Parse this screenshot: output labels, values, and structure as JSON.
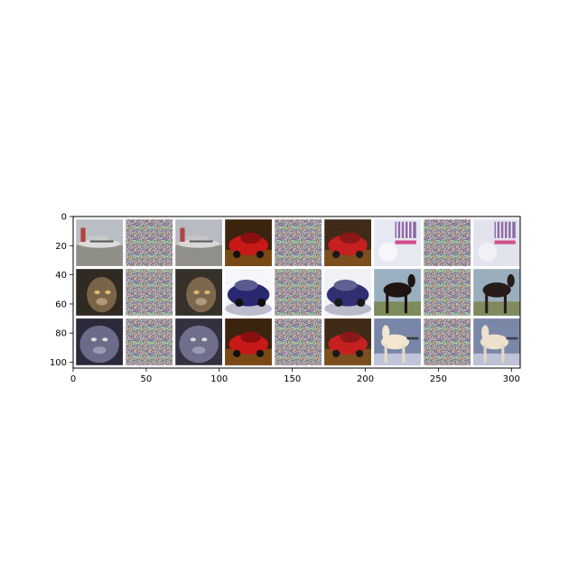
{
  "chart_data": {
    "type": "heatmap",
    "title": "",
    "xlabel": "",
    "ylabel": "",
    "xlim": [
      0,
      306
    ],
    "ylim": [
      104,
      0
    ],
    "x_ticks": [
      0,
      50,
      100,
      150,
      200,
      250,
      300
    ],
    "y_ticks": [
      0,
      20,
      40,
      60,
      80,
      100
    ],
    "x_tick_labels": [
      "0",
      "50",
      "100",
      "150",
      "200",
      "250",
      "300"
    ],
    "y_tick_labels": [
      "0",
      "20",
      "40",
      "60",
      "80",
      "100"
    ],
    "grid": false,
    "legend": "none",
    "tile_size": 32,
    "tile_padding": 2,
    "tiles": [
      {
        "row": 0,
        "col": 0,
        "content": "airplane",
        "kind": "original"
      },
      {
        "row": 0,
        "col": 1,
        "content": "noise",
        "kind": "perturbation"
      },
      {
        "row": 0,
        "col": 2,
        "content": "airplane",
        "kind": "adversarial"
      },
      {
        "row": 0,
        "col": 3,
        "content": "red car",
        "kind": "original"
      },
      {
        "row": 0,
        "col": 4,
        "content": "noise",
        "kind": "perturbation"
      },
      {
        "row": 0,
        "col": 5,
        "content": "red car",
        "kind": "adversarial"
      },
      {
        "row": 0,
        "col": 6,
        "content": "light object",
        "kind": "original"
      },
      {
        "row": 0,
        "col": 7,
        "content": "noise",
        "kind": "perturbation"
      },
      {
        "row": 0,
        "col": 8,
        "content": "light object",
        "kind": "adversarial"
      },
      {
        "row": 1,
        "col": 0,
        "content": "cat",
        "kind": "original"
      },
      {
        "row": 1,
        "col": 1,
        "content": "noise",
        "kind": "perturbation"
      },
      {
        "row": 1,
        "col": 2,
        "content": "cat",
        "kind": "adversarial"
      },
      {
        "row": 1,
        "col": 3,
        "content": "blue car",
        "kind": "original"
      },
      {
        "row": 1,
        "col": 4,
        "content": "noise",
        "kind": "perturbation"
      },
      {
        "row": 1,
        "col": 5,
        "content": "blue car",
        "kind": "adversarial"
      },
      {
        "row": 1,
        "col": 6,
        "content": "dark horse",
        "kind": "original"
      },
      {
        "row": 1,
        "col": 7,
        "content": "noise",
        "kind": "perturbation"
      },
      {
        "row": 1,
        "col": 8,
        "content": "dark horse",
        "kind": "adversarial"
      },
      {
        "row": 2,
        "col": 0,
        "content": "grey cat",
        "kind": "original"
      },
      {
        "row": 2,
        "col": 1,
        "content": "noise",
        "kind": "perturbation"
      },
      {
        "row": 2,
        "col": 2,
        "content": "grey cat",
        "kind": "adversarial"
      },
      {
        "row": 2,
        "col": 3,
        "content": "red car",
        "kind": "original"
      },
      {
        "row": 2,
        "col": 4,
        "content": "noise",
        "kind": "perturbation"
      },
      {
        "row": 2,
        "col": 5,
        "content": "red car",
        "kind": "adversarial"
      },
      {
        "row": 2,
        "col": 6,
        "content": "white horse",
        "kind": "original"
      },
      {
        "row": 2,
        "col": 7,
        "content": "noise",
        "kind": "perturbation"
      },
      {
        "row": 2,
        "col": 8,
        "content": "white horse",
        "kind": "adversarial"
      }
    ]
  },
  "colors": {
    "frame": "#000000",
    "grid_background": "#ffffff",
    "figure_background": "#ffffff"
  }
}
